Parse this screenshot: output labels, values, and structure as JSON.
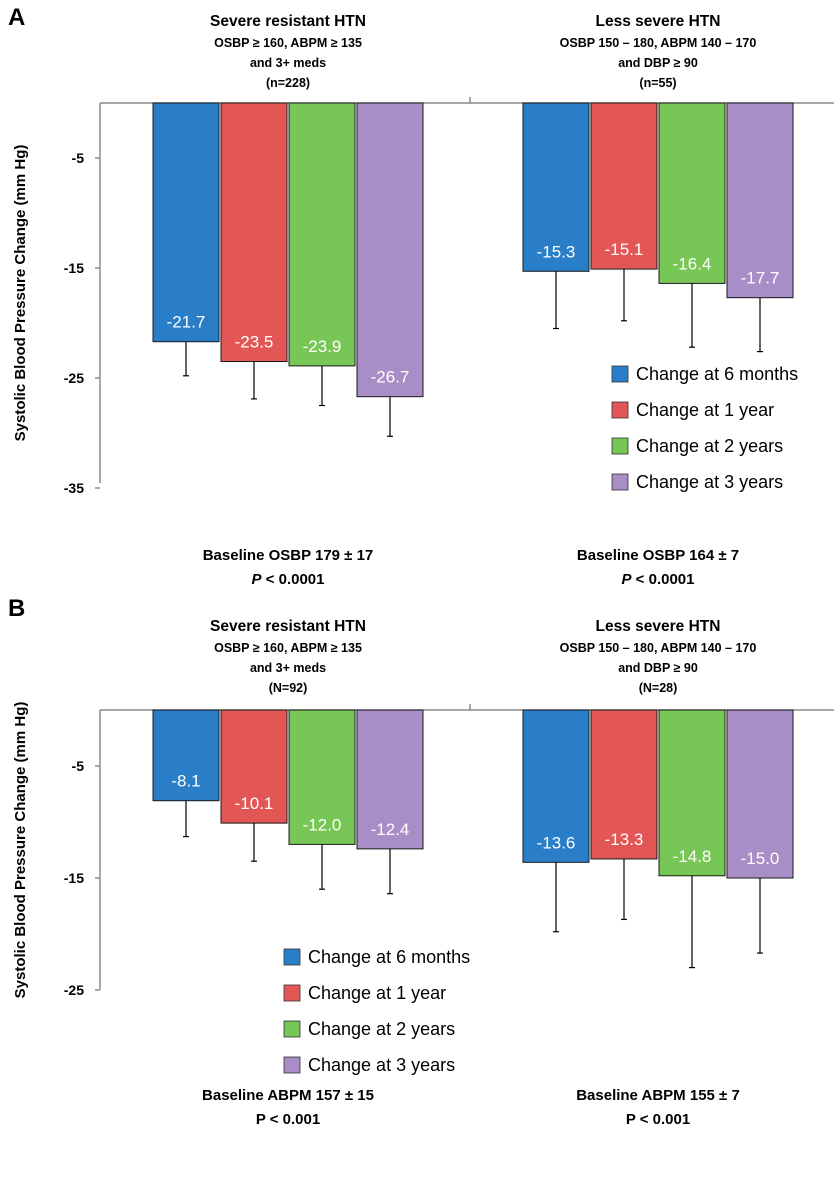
{
  "colors": {
    "6m": "#2a7ec8",
    "1y": "#e35656",
    "2y": "#78c655",
    "3y": "#a98dc6"
  },
  "chart_data": [
    {
      "panel": "A",
      "type": "bar",
      "ylabel": "Systolic Blood Pressure Change (mm Hg)",
      "ylim": [
        -35,
        0
      ],
      "yticks": [
        "-5",
        "-15",
        "-25",
        "-35"
      ],
      "legend": {
        "position": "lower-right",
        "entries": [
          "Change at 6 months",
          "Change at 1 year",
          "Change at 2 years",
          "Change at 3 years"
        ]
      },
      "groups": [
        {
          "title": "Severe resistant HTN",
          "sub1": "OSBP ≥ 160, ABPM ≥ 135",
          "sub2": "and 3+ meds",
          "n": "(n=228)",
          "values": [
            -21.7,
            -23.5,
            -23.9,
            -26.7
          ],
          "labels": [
            "-21.7",
            "-23.5",
            "-23.9",
            "-26.7"
          ],
          "error_bars": [
            3.1,
            3.4,
            3.6,
            3.6
          ],
          "baseline": "Baseline OSBP 179 ± 17",
          "p_prefix": "P",
          "p_rest": " < 0.0001"
        },
        {
          "title": "Less severe HTN",
          "sub1": "OSBP 150 – 180, ABPM 140 – 170",
          "sub2": "and DBP ≥ 90",
          "n": "(n=55)",
          "values": [
            -15.3,
            -15.1,
            -16.4,
            -17.7
          ],
          "labels": [
            "-15.3",
            "-15.1",
            "-16.4",
            "-17.7"
          ],
          "error_bars": [
            5.2,
            4.7,
            5.8,
            4.9
          ],
          "baseline": "Baseline OSBP 164 ± 7",
          "p_prefix": "P",
          "p_rest": " < 0.0001"
        }
      ]
    },
    {
      "panel": "B",
      "type": "bar",
      "ylabel": "Systolic Blood Pressure Change (mm Hg)",
      "ylim": [
        -25,
        0
      ],
      "yticks": [
        "-5",
        "-15",
        "-25"
      ],
      "legend": {
        "position": "lower-left",
        "entries": [
          "Change at 6 months",
          "Change at 1 year",
          "Change at 2 years",
          "Change at 3 years"
        ]
      },
      "groups": [
        {
          "title": "Severe resistant HTN",
          "sub1": "OSBP ≥ 160, ABPM ≥ 135",
          "sub2": "and 3+ meds",
          "n": "(N=92)",
          "values": [
            -8.1,
            -10.1,
            -12.0,
            -12.4
          ],
          "labels": [
            "-8.1",
            "-10.1",
            "-12.0",
            "-12.4"
          ],
          "error_bars": [
            3.2,
            3.4,
            4.0,
            4.0
          ],
          "baseline": "Baseline ABPM 157 ± 15",
          "p_prefix": "",
          "p_rest": "P < 0.001"
        },
        {
          "title": "Less severe HTN",
          "sub1": "OSBP 150 – 180, ABPM 140 – 170",
          "sub2": "and DBP ≥ 90",
          "n": "(N=28)",
          "values": [
            -13.6,
            -13.3,
            -14.8,
            -15.0
          ],
          "labels": [
            "-13.6",
            "-13.3",
            "-14.8",
            "-15.0"
          ],
          "error_bars": [
            6.2,
            5.4,
            8.2,
            6.7
          ],
          "baseline": "Baseline ABPM 155 ± 7",
          "p_prefix": "",
          "p_rest": "P < 0.001"
        }
      ]
    }
  ]
}
